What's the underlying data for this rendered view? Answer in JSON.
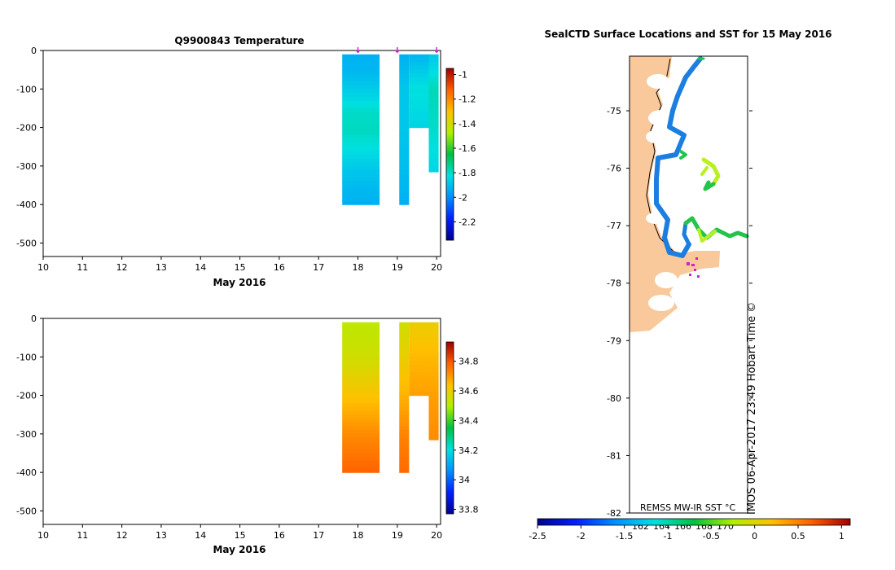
{
  "chart_data": [
    {
      "type": "heatmap",
      "title": "Q9900843  Temperature",
      "xlabel": "May 2016",
      "ylabel": "",
      "xlim": [
        10,
        20.1
      ],
      "ylim": [
        -535,
        0
      ],
      "x_ticks": [
        10,
        11,
        12,
        13,
        14,
        15,
        16,
        17,
        18,
        19,
        20
      ],
      "y_ticks": [
        0,
        -100,
        -200,
        -300,
        -400,
        -500
      ],
      "profile_markers_day": [
        18.0,
        19.0,
        20.0
      ],
      "profiles": [
        {
          "x0": 17.6,
          "x1": 18.55,
          "depth_max": -400,
          "depths": [
            -10,
            -60,
            -110,
            -160,
            -210,
            -260,
            -310,
            -360,
            -400
          ],
          "values": [
            -1.93,
            -1.91,
            -1.86,
            -1.8,
            -1.79,
            -1.83,
            -1.88,
            -1.91,
            -1.93
          ]
        },
        {
          "x0": 19.05,
          "x1": 19.3,
          "depth_max": -400,
          "depths": [
            -10,
            -100,
            -200,
            -300,
            -400
          ],
          "values": [
            -1.93,
            -1.88,
            -1.88,
            -1.9,
            -1.93
          ]
        },
        {
          "x0": 19.3,
          "x1": 19.8,
          "depth_max": -200,
          "depths": [
            -10,
            -100,
            -200
          ],
          "values": [
            -1.92,
            -1.82,
            -1.85
          ]
        },
        {
          "x0": 19.8,
          "x1": 20.05,
          "depth_max": -315,
          "depths": [
            -10,
            -100,
            -200,
            -315
          ],
          "values": [
            -1.88,
            -1.78,
            -1.8,
            -1.85
          ]
        }
      ],
      "colorbar": {
        "min": -2.35,
        "max": -0.95,
        "ticks": [
          -1,
          -1.2,
          -1.4,
          -1.6,
          -1.8,
          -2,
          -2.2
        ]
      }
    },
    {
      "type": "heatmap",
      "title": "",
      "xlabel": "May 2016",
      "ylabel": "",
      "xlim": [
        10,
        20.1
      ],
      "ylim": [
        -535,
        0
      ],
      "x_ticks": [
        10,
        11,
        12,
        13,
        14,
        15,
        16,
        17,
        18,
        19,
        20
      ],
      "y_ticks": [
        0,
        -100,
        -200,
        -300,
        -400,
        -500
      ],
      "profiles": [
        {
          "x0": 17.6,
          "x1": 18.55,
          "depth_max": -400,
          "depths": [
            -10,
            -100,
            -200,
            -300,
            -400
          ],
          "values": [
            34.52,
            34.55,
            34.63,
            34.72,
            34.78
          ]
        },
        {
          "x0": 19.05,
          "x1": 19.3,
          "depth_max": -400,
          "depths": [
            -10,
            -100,
            -200,
            -300,
            -400
          ],
          "values": [
            34.55,
            34.6,
            34.66,
            34.73,
            34.77
          ]
        },
        {
          "x0": 19.3,
          "x1": 19.8,
          "depth_max": -200,
          "depths": [
            -10,
            -100,
            -200
          ],
          "values": [
            34.6,
            34.65,
            34.69
          ]
        },
        {
          "x0": 19.8,
          "x1": 20.05,
          "depth_max": -315,
          "depths": [
            -10,
            -100,
            -200,
            -315
          ],
          "values": [
            34.6,
            34.65,
            34.69,
            34.72
          ]
        }
      ],
      "colorbar": {
        "min": 33.77,
        "max": 34.93,
        "ticks": [
          34.8,
          34.6,
          34.4,
          34.2,
          34,
          33.8
        ]
      }
    },
    {
      "type": "scatter",
      "title": "SealCTD Surface Locations and SST for 15 May 2016",
      "lat_range": [
        -82,
        -74.05
      ],
      "lat_ticks": [
        -75,
        -76,
        -77,
        -78,
        -79,
        -80,
        -81,
        -82
      ],
      "lon_labels": [
        "162",
        "164",
        "166",
        "168",
        "170"
      ],
      "colorbar": {
        "label": "REMSS MW-IR SST °C",
        "min": -2.5,
        "max": 1.1,
        "ticks": [
          -2.5,
          -2,
          -1.5,
          -1,
          -0.5,
          0,
          0.5,
          1
        ]
      },
      "track_values": [
        -1.75,
        -1.7,
        -1.3,
        -1.35,
        -1.25
      ]
    }
  ],
  "watermark": "IMOS 06-Apr-2017 23:49 Hobart Time ©",
  "colors": {
    "land": "#f9c89b",
    "track": "#1c7ee0",
    "marker": "#d020d0",
    "coast": "#000000"
  }
}
